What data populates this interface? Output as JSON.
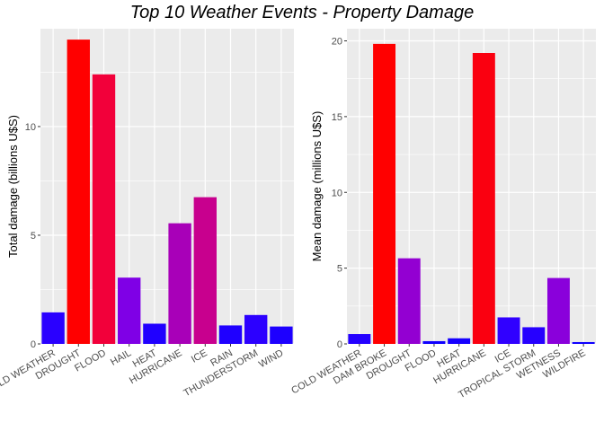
{
  "title": "Top 10 Weather Events - Property Damage",
  "chart_data": [
    {
      "type": "bar",
      "ylabel": "Total damage (billions U$S)",
      "xlabel": "",
      "categories": [
        "COLD WEATHER",
        "DROUGHT",
        "FLOOD",
        "HAIL",
        "HEAT",
        "HURRICANE",
        "ICE",
        "RAIN",
        "THUNDERSTORM",
        "WIND"
      ],
      "values": [
        1.45,
        14.0,
        12.4,
        3.05,
        0.93,
        5.55,
        6.75,
        0.85,
        1.33,
        0.8
      ],
      "colors": [
        "#2a00ff",
        "#ff0000",
        "#f2003a",
        "#7f00e6",
        "#2000ff",
        "#a800b8",
        "#c8008e",
        "#1f00ff",
        "#2c00ff",
        "#1d00ff"
      ],
      "ylim": [
        0,
        14.5
      ],
      "yticks": [
        0,
        5,
        10
      ],
      "panel_background": "#ebebeb",
      "grid": true
    },
    {
      "type": "bar",
      "ylabel": "Mean damage (millions U$S)",
      "xlabel": "",
      "categories": [
        "COLD WEATHER",
        "DAM BROKE",
        "DROUGHT",
        "FLOOD",
        "HEAT",
        "HURRICANE",
        "ICE",
        "TROPICAL STORM",
        "WETNESS",
        "WILDFIRE"
      ],
      "values": [
        0.65,
        19.8,
        5.65,
        0.18,
        0.37,
        19.2,
        1.75,
        1.1,
        4.35,
        0.12
      ],
      "colors": [
        "#2400ff",
        "#ff0000",
        "#9300d2",
        "#1000ff",
        "#1600ff",
        "#fa0010",
        "#3000ff",
        "#2600ff",
        "#8a00db",
        "#0f00ff"
      ],
      "ylim": [
        0,
        20.8
      ],
      "yticks": [
        0,
        5,
        10,
        15,
        20
      ],
      "panel_background": "#ebebeb",
      "grid": true
    }
  ]
}
